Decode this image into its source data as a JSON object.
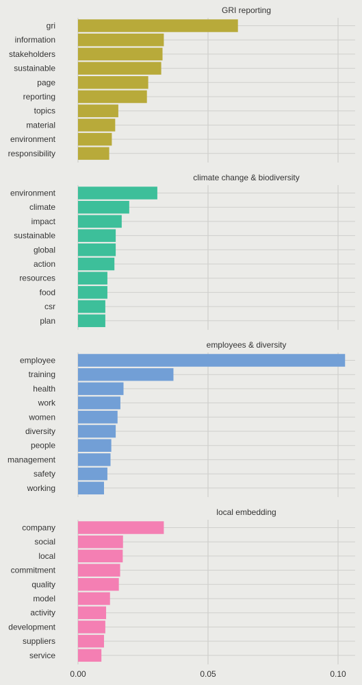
{
  "chart_data": {
    "type": "bar",
    "orientation": "horizontal",
    "xlim": [
      0,
      0.1
    ],
    "xticks": [
      0.0,
      0.05,
      0.1
    ],
    "xtick_labels": [
      "0.00",
      "0.05",
      "0.10"
    ],
    "grid": true,
    "facets": [
      {
        "title": "GRI reporting",
        "color": "#b8aa3a",
        "categories": [
          "gri",
          "information",
          "stakeholders",
          "sustainable",
          "page",
          "reporting",
          "topics",
          "material",
          "environment",
          "responsibility"
        ],
        "values": [
          0.0615,
          0.033,
          0.0325,
          0.032,
          0.027,
          0.0265,
          0.0155,
          0.0143,
          0.013,
          0.012
        ]
      },
      {
        "title": "climate change & biodiversity",
        "color": "#3dbf9a",
        "categories": [
          "environment",
          "climate",
          "impact",
          "sustainable",
          "global",
          "action",
          "resources",
          "food",
          "csr",
          "plan"
        ],
        "values": [
          0.0305,
          0.0197,
          0.0168,
          0.0145,
          0.0145,
          0.014,
          0.0113,
          0.0113,
          0.0105,
          0.0105
        ]
      },
      {
        "title": "employees & diversity",
        "color": "#729fd6",
        "categories": [
          "employee",
          "training",
          "health",
          "work",
          "women",
          "diversity",
          "people",
          "management",
          "safety",
          "working"
        ],
        "values": [
          0.1027,
          0.0367,
          0.0175,
          0.0163,
          0.0152,
          0.0145,
          0.0128,
          0.0125,
          0.0113,
          0.01
        ]
      },
      {
        "title": "local embedding",
        "color": "#f47fb3",
        "categories": [
          "company",
          "social",
          "local",
          "commitment",
          "quality",
          "model",
          "activity",
          "development",
          "suppliers",
          "service"
        ],
        "values": [
          0.033,
          0.0173,
          0.0172,
          0.0162,
          0.0157,
          0.0123,
          0.0108,
          0.0105,
          0.01,
          0.009
        ]
      }
    ]
  }
}
